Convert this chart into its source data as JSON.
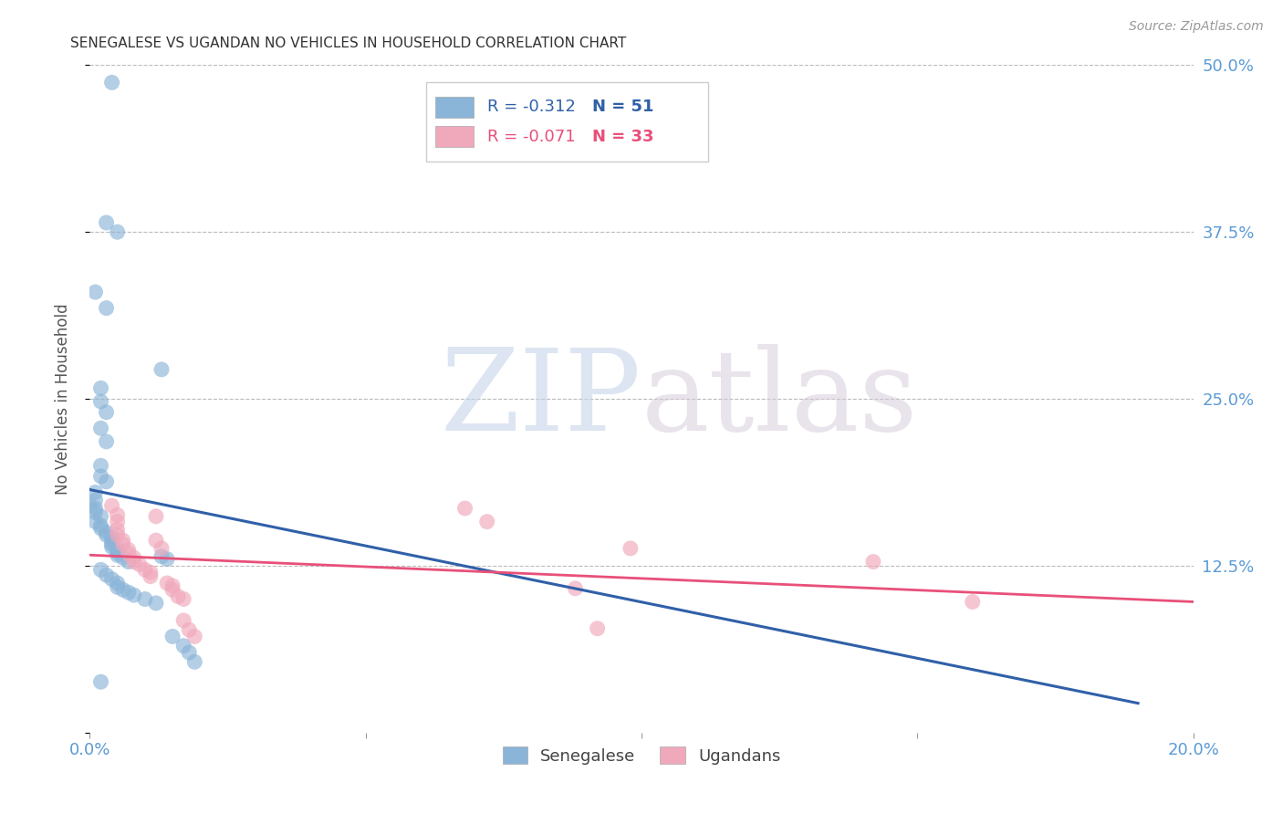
{
  "title": "SENEGALESE VS UGANDAN NO VEHICLES IN HOUSEHOLD CORRELATION CHART",
  "source": "Source: ZipAtlas.com",
  "ylabel": "No Vehicles in Household",
  "watermark_zip": "ZIP",
  "watermark_atlas": "atlas",
  "xlim": [
    0.0,
    0.2
  ],
  "ylim": [
    0.0,
    0.5
  ],
  "xticks": [
    0.0,
    0.05,
    0.1,
    0.15,
    0.2
  ],
  "xtick_labels": [
    "0.0%",
    "",
    "",
    "",
    "20.0%"
  ],
  "ytick_labels_right": [
    "50.0%",
    "37.5%",
    "25.0%",
    "12.5%",
    ""
  ],
  "yticks": [
    0.5,
    0.375,
    0.25,
    0.125,
    0.0
  ],
  "legend_blue_R": "R = -0.312",
  "legend_blue_N": "N = 51",
  "legend_pink_R": "R = -0.071",
  "legend_pink_N": "N = 33",
  "blue_color": "#8ab4d8",
  "pink_color": "#f0a8bb",
  "trendline_blue_color": "#3060a8",
  "trendline_pink_color": "#e8507a",
  "blue_scatter": [
    [
      0.004,
      0.487
    ],
    [
      0.003,
      0.382
    ],
    [
      0.005,
      0.375
    ],
    [
      0.001,
      0.33
    ],
    [
      0.003,
      0.318
    ],
    [
      0.013,
      0.272
    ],
    [
      0.002,
      0.258
    ],
    [
      0.002,
      0.248
    ],
    [
      0.003,
      0.24
    ],
    [
      0.002,
      0.228
    ],
    [
      0.003,
      0.218
    ],
    [
      0.002,
      0.2
    ],
    [
      0.002,
      0.192
    ],
    [
      0.003,
      0.188
    ],
    [
      0.001,
      0.18
    ],
    [
      0.001,
      0.174
    ],
    [
      0.0,
      0.17
    ],
    [
      0.001,
      0.168
    ],
    [
      0.001,
      0.165
    ],
    [
      0.002,
      0.162
    ],
    [
      0.001,
      0.158
    ],
    [
      0.002,
      0.155
    ],
    [
      0.002,
      0.153
    ],
    [
      0.003,
      0.15
    ],
    [
      0.003,
      0.148
    ],
    [
      0.004,
      0.146
    ],
    [
      0.004,
      0.143
    ],
    [
      0.004,
      0.141
    ],
    [
      0.004,
      0.139
    ],
    [
      0.005,
      0.137
    ],
    [
      0.005,
      0.135
    ],
    [
      0.005,
      0.133
    ],
    [
      0.006,
      0.131
    ],
    [
      0.007,
      0.128
    ],
    [
      0.013,
      0.132
    ],
    [
      0.014,
      0.13
    ],
    [
      0.002,
      0.122
    ],
    [
      0.003,
      0.118
    ],
    [
      0.004,
      0.115
    ],
    [
      0.005,
      0.112
    ],
    [
      0.005,
      0.109
    ],
    [
      0.006,
      0.107
    ],
    [
      0.007,
      0.105
    ],
    [
      0.008,
      0.103
    ],
    [
      0.01,
      0.1
    ],
    [
      0.012,
      0.097
    ],
    [
      0.015,
      0.072
    ],
    [
      0.017,
      0.065
    ],
    [
      0.018,
      0.06
    ],
    [
      0.019,
      0.053
    ],
    [
      0.002,
      0.038
    ]
  ],
  "pink_scatter": [
    [
      0.004,
      0.17
    ],
    [
      0.005,
      0.163
    ],
    [
      0.005,
      0.158
    ],
    [
      0.005,
      0.152
    ],
    [
      0.005,
      0.148
    ],
    [
      0.006,
      0.144
    ],
    [
      0.006,
      0.141
    ],
    [
      0.007,
      0.137
    ],
    [
      0.007,
      0.134
    ],
    [
      0.008,
      0.131
    ],
    [
      0.008,
      0.128
    ],
    [
      0.009,
      0.126
    ],
    [
      0.01,
      0.122
    ],
    [
      0.011,
      0.12
    ],
    [
      0.011,
      0.117
    ],
    [
      0.012,
      0.162
    ],
    [
      0.012,
      0.144
    ],
    [
      0.013,
      0.138
    ],
    [
      0.014,
      0.112
    ],
    [
      0.015,
      0.11
    ],
    [
      0.015,
      0.107
    ],
    [
      0.016,
      0.102
    ],
    [
      0.017,
      0.1
    ],
    [
      0.017,
      0.084
    ],
    [
      0.018,
      0.077
    ],
    [
      0.019,
      0.072
    ],
    [
      0.068,
      0.168
    ],
    [
      0.072,
      0.158
    ],
    [
      0.088,
      0.108
    ],
    [
      0.098,
      0.138
    ],
    [
      0.142,
      0.128
    ],
    [
      0.092,
      0.078
    ],
    [
      0.16,
      0.098
    ]
  ],
  "blue_trendline_x": [
    0.0,
    0.19
  ],
  "blue_trendline_y": [
    0.182,
    0.022
  ],
  "pink_trendline_x": [
    0.0,
    0.2
  ],
  "pink_trendline_y": [
    0.133,
    0.098
  ],
  "background_color": "#ffffff",
  "grid_color": "#bbbbbb",
  "title_color": "#333333",
  "axis_label_color": "#555555",
  "right_tick_color": "#5b9bd5",
  "bottom_tick_color": "#5b9bd5"
}
